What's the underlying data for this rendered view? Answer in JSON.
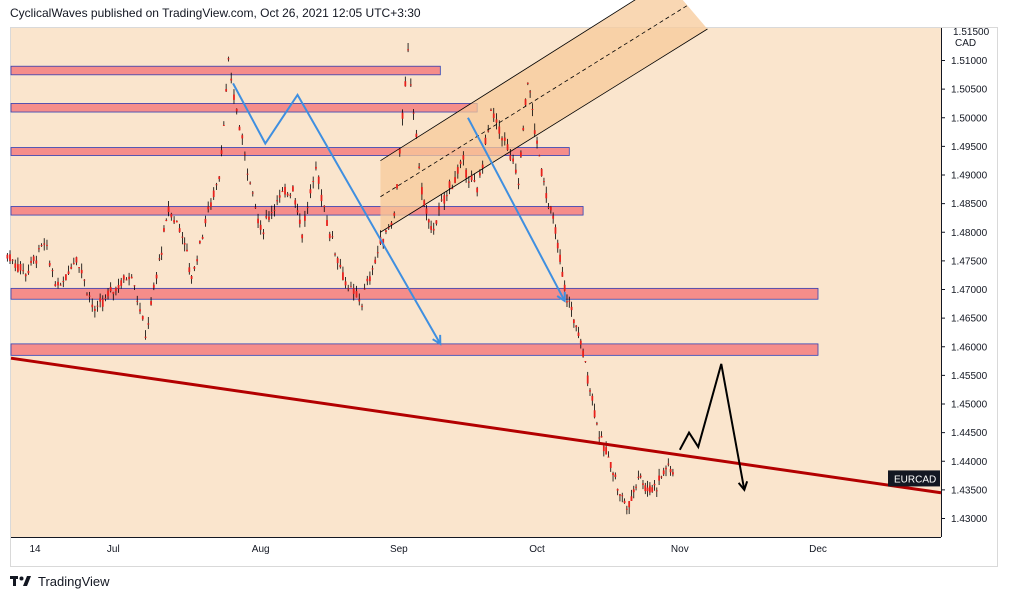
{
  "header": {
    "text": "CyclicalWaves published on TradingView.com, Oct 26, 2021 12:05 UTC+3:30"
  },
  "footer": {
    "brand": "TradingView",
    "logo_icon": "tradingview-logo-icon"
  },
  "colors": {
    "background": "#fae5cd",
    "zone": "#f58d8a",
    "zone_border": "#2f3fb5",
    "candle": "#e8201b",
    "wick": "#000000",
    "trendline": "#b30000",
    "wave": "#3f8fe0",
    "channel": "#f7c99a"
  },
  "chart_data": {
    "type": "candlestick",
    "symbol": "EURCAD",
    "currency_label": "CAD",
    "ylim": [
      1.429,
      1.516
    ],
    "y_ticks": [
      "1.51000",
      "1.50500",
      "1.50000",
      "1.49500",
      "1.49000",
      "1.48500",
      "1.48000",
      "1.47500",
      "1.47000",
      "1.46500",
      "1.46000",
      "1.45500",
      "1.45000",
      "1.44500",
      "1.44000",
      "1.43500",
      "1.43000"
    ],
    "top_tick_partial": "1.51500",
    "x_ticks": [
      {
        "label": "14",
        "date": "2021-06-14"
      },
      {
        "label": "Jul",
        "date": "2021-07-01"
      },
      {
        "label": "Aug",
        "date": "2021-08-02"
      },
      {
        "label": "Sep",
        "date": "2021-09-01"
      },
      {
        "label": "Oct",
        "date": "2021-10-01"
      },
      {
        "label": "Nov",
        "date": "2021-11-01"
      },
      {
        "label": "Dec",
        "date": "2021-12-01"
      }
    ],
    "last_price_label": "EURCAD",
    "price_path": [
      [
        "2021-06-08",
        1.476
      ],
      [
        "2021-06-12",
        1.473
      ],
      [
        "2021-06-16",
        1.478
      ],
      [
        "2021-06-19",
        1.47
      ],
      [
        "2021-06-23",
        1.476
      ],
      [
        "2021-06-27",
        1.466
      ],
      [
        "2021-07-01",
        1.47
      ],
      [
        "2021-07-05",
        1.473
      ],
      [
        "2021-07-08",
        1.462
      ],
      [
        "2021-07-11",
        1.475
      ],
      [
        "2021-07-13",
        1.484
      ],
      [
        "2021-07-16",
        1.48
      ],
      [
        "2021-07-18",
        1.472
      ],
      [
        "2021-07-21",
        1.482
      ],
      [
        "2021-07-24",
        1.49
      ],
      [
        "2021-07-26",
        1.509
      ],
      [
        "2021-07-29",
        1.496
      ],
      [
        "2021-08-02",
        1.48
      ],
      [
        "2021-08-05",
        1.485
      ],
      [
        "2021-08-09",
        1.488
      ],
      [
        "2021-08-11",
        1.48
      ],
      [
        "2021-08-14",
        1.491
      ],
      [
        "2021-08-17",
        1.48
      ],
      [
        "2021-08-21",
        1.47
      ],
      [
        "2021-08-24",
        1.468
      ],
      [
        "2021-08-28",
        1.478
      ],
      [
        "2021-08-31",
        1.483
      ],
      [
        "2021-09-03",
        1.511
      ],
      [
        "2021-09-06",
        1.487
      ],
      [
        "2021-09-08",
        1.48
      ],
      [
        "2021-09-12",
        1.488
      ],
      [
        "2021-09-15",
        1.492
      ],
      [
        "2021-09-18",
        1.487
      ],
      [
        "2021-09-21",
        1.501
      ],
      [
        "2021-09-24",
        1.496
      ],
      [
        "2021-09-27",
        1.489
      ],
      [
        "2021-09-29",
        1.507
      ],
      [
        "2021-10-01",
        1.495
      ],
      [
        "2021-10-03",
        1.487
      ],
      [
        "2021-10-05",
        1.48
      ],
      [
        "2021-10-07",
        1.47
      ],
      [
        "2021-10-09",
        1.465
      ],
      [
        "2021-10-11",
        1.459
      ],
      [
        "2021-10-13",
        1.451
      ],
      [
        "2021-10-15",
        1.443
      ],
      [
        "2021-10-17",
        1.44
      ],
      [
        "2021-10-19",
        1.434
      ],
      [
        "2021-10-21",
        1.432
      ],
      [
        "2021-10-23",
        1.438
      ],
      [
        "2021-10-25",
        1.435
      ],
      [
        "2021-10-27",
        1.436
      ],
      [
        "2021-10-29",
        1.439
      ],
      [
        "2021-10-31",
        1.438
      ]
    ],
    "resistance_zones": [
      {
        "from": "2021-06-08",
        "to": "2021-09-10",
        "low": 1.5075,
        "high": 1.509
      },
      {
        "from": "2021-06-08",
        "to": "2021-09-18",
        "low": 1.501,
        "high": 1.5025
      },
      {
        "from": "2021-06-08",
        "to": "2021-10-08",
        "low": 1.4935,
        "high": 1.4948
      },
      {
        "from": "2021-06-08",
        "to": "2021-10-11",
        "low": 1.483,
        "high": 1.4845
      },
      {
        "from": "2021-06-08",
        "to": "2021-12-01",
        "low": 1.4683,
        "high": 1.4702
      },
      {
        "from": "2021-06-08",
        "to": "2021-12-01",
        "low": 1.4585,
        "high": 1.4605
      }
    ],
    "trendline": [
      [
        "2021-06-08",
        1.458
      ],
      [
        "2021-12-10",
        1.4345
      ]
    ],
    "channel": {
      "lower": [
        [
          "2021-08-28",
          1.48
        ],
        [
          "2021-11-07",
          1.5155
        ]
      ],
      "upper": [
        [
          "2021-08-28",
          1.4925
        ],
        [
          "2021-10-29",
          1.524
        ]
      ],
      "mid": [
        [
          "2021-08-28",
          1.4862
        ],
        [
          "2021-11-03",
          1.5198
        ]
      ]
    },
    "wave_paths": [
      [
        [
          "2021-07-27",
          1.506
        ],
        [
          "2021-08-03",
          1.4955
        ],
        [
          "2021-08-10",
          1.504
        ],
        [
          "2021-09-10",
          1.4605
        ]
      ],
      [
        [
          "2021-09-16",
          1.5
        ],
        [
          "2021-10-07",
          1.468
        ]
      ]
    ],
    "projection_path": [
      [
        "2021-11-01",
        1.442
      ],
      [
        "2021-11-03",
        1.445
      ],
      [
        "2021-11-05",
        1.4425
      ],
      [
        "2021-11-10",
        1.457
      ],
      [
        "2021-11-15",
        1.435
      ]
    ]
  }
}
